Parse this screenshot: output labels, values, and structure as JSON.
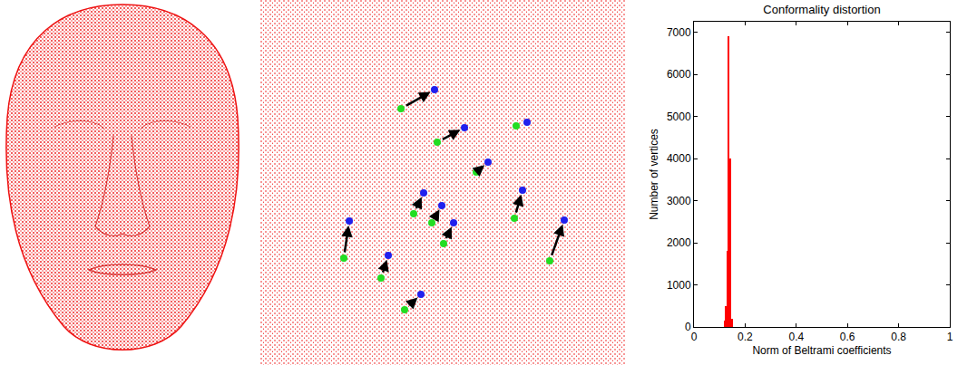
{
  "chart_data": [
    {
      "type": "scatter",
      "xlim": [
        0,
        403
      ],
      "ylim": [
        0,
        403
      ],
      "tick_labels": false,
      "series": [
        {
          "color": "#22dd22",
          "marker": "circle",
          "x": [
            155,
            195,
            282,
            238,
            169,
            189,
            202,
            280,
            92,
            133,
            319,
            159
          ],
          "y": [
            283,
            246,
            264,
            213,
            167,
            157,
            134,
            162,
            118,
            96,
            115,
            61
          ]
        },
        {
          "color": "#2020ee",
          "marker": "circle",
          "x": [
            192,
            225,
            294,
            251,
            180,
            200,
            213,
            289,
            98,
            141,
            335,
            177
          ],
          "y": [
            304,
            262,
            268,
            224,
            190,
            176,
            157,
            193,
            159,
            121,
            160,
            78
          ]
        }
      ]
    },
    {
      "type": "histogram",
      "title": "Conformality distortion",
      "x_label": "Norm of Beltrami coefficients",
      "y_label": "Number of vertices",
      "bins": [
        0.118,
        0.124,
        0.13,
        0.134,
        0.14,
        0.146,
        0.15
      ],
      "counts": [
        150,
        500,
        1800,
        6900,
        4000,
        200
      ],
      "color": "#ff0000",
      "xlim": [
        0,
        1
      ],
      "xticks": [
        0,
        0.2,
        0.4,
        0.6,
        0.8,
        1
      ],
      "ylim": [
        0,
        7250
      ],
      "yticks": [
        0,
        1000,
        2000,
        3000,
        4000,
        5000,
        6000,
        7000
      ],
      "grid": false
    }
  ]
}
